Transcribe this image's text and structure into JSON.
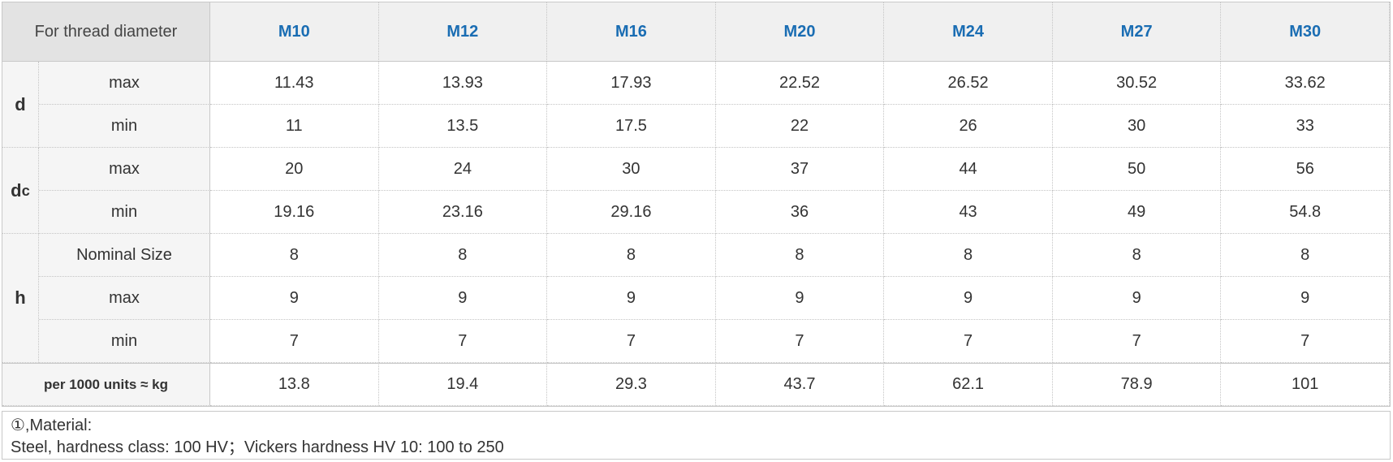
{
  "table": {
    "corner": "For thread diameter",
    "columns": [
      "M10",
      "M12",
      "M16",
      "M20",
      "M24",
      "M27",
      "M30"
    ],
    "groups": [
      {
        "symbol": "d",
        "rows": [
          {
            "label": "max",
            "values": [
              11.43,
              13.93,
              17.93,
              22.52,
              26.52,
              30.52,
              33.62
            ]
          },
          {
            "label": "min",
            "values": [
              11,
              13.5,
              17.5,
              22,
              26,
              30,
              33
            ]
          }
        ]
      },
      {
        "symbol": "d",
        "subscript": "c",
        "rows": [
          {
            "label": "max",
            "values": [
              20,
              24,
              30,
              37,
              44,
              50,
              56
            ]
          },
          {
            "label": "min",
            "values": [
              19.16,
              23.16,
              29.16,
              36,
              43,
              49,
              54.8
            ]
          }
        ]
      },
      {
        "symbol": "h",
        "rows": [
          {
            "label": "Nominal Size",
            "values": [
              8,
              8,
              8,
              8,
              8,
              8,
              8
            ]
          },
          {
            "label": "max",
            "values": [
              9,
              9,
              9,
              9,
              9,
              9,
              9
            ]
          },
          {
            "label": "min",
            "values": [
              7,
              7,
              7,
              7,
              7,
              7,
              7
            ]
          }
        ]
      }
    ],
    "weight": {
      "label": "per 1000 units ≈ kg",
      "values": [
        13.8,
        19.4,
        29.3,
        43.7,
        62.1,
        78.9,
        101
      ]
    }
  },
  "note": {
    "title": "①,Material:",
    "text": "Steel, hardness class: 100 HV；Vickers hardness HV 10: 100 to 250"
  }
}
